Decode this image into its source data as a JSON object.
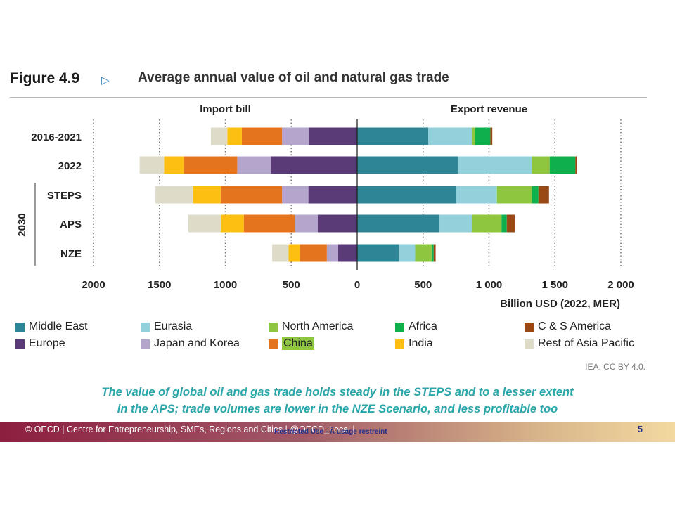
{
  "figure": {
    "number": "Figure 4.9",
    "title": "Average annual value of oil and natural gas trade",
    "credit": "IEA. CC BY 4.0."
  },
  "caption": {
    "line1": "The value of global oil and gas trade holds steady in the STEPS and to a lesser extent",
    "line2": "in the APS; trade volumes are lower in the NZE Scenario, and less profitable too"
  },
  "footer": {
    "text": "© OECD | Centre for Entrepreneurship, SMEs, Regions and Cities | @OECD_Local |",
    "mark": "Restricted Use - À usage restreint",
    "page": "5"
  },
  "chart_data": {
    "type": "bar",
    "orientation": "horizontal-diverging",
    "left_panel_label": "Import bill",
    "right_panel_label": "Export revenue",
    "xlabel": "Billion USD (2022, MER)",
    "xlim": [
      -2000,
      2000
    ],
    "x_tick_labels": [
      "2000",
      "1500",
      "1000",
      "500",
      "0",
      "500",
      "1 000",
      "1 500",
      "2 000"
    ],
    "x_tick_values": [
      -2000,
      -1500,
      -1000,
      -500,
      0,
      500,
      1000,
      1500,
      2000
    ],
    "group_label": "2030",
    "group_members": [
      "STEPS",
      "APS",
      "NZE"
    ],
    "categories": [
      "2016-2021",
      "2022",
      "STEPS",
      "APS",
      "NZE"
    ],
    "colors": {
      "Middle East": "#2e8596",
      "Eurasia": "#92d0dc",
      "North America": "#8ec63f",
      "Africa": "#0fb04c",
      "C & S America": "#9a4814",
      "Europe": "#5a3b78",
      "Japan and Korea": "#b4a5cd",
      "China": "#e5741e",
      "India": "#fdbf12",
      "Rest of Asia Pacific": "#dedcc9"
    },
    "exporter_series": [
      {
        "name": "Middle East",
        "values": [
          540,
          765,
          750,
          620,
          315
        ]
      },
      {
        "name": "Eurasia",
        "values": [
          330,
          560,
          310,
          250,
          125
        ]
      },
      {
        "name": "North America",
        "values": [
          25,
          135,
          265,
          225,
          125
        ]
      },
      {
        "name": "Africa",
        "values": [
          115,
          195,
          50,
          40,
          15
        ]
      },
      {
        "name": "C & S America",
        "values": [
          15,
          10,
          80,
          60,
          15
        ]
      }
    ],
    "importer_series": [
      {
        "name": "Europe",
        "values": [
          365,
          655,
          370,
          300,
          145
        ]
      },
      {
        "name": "Japan and Korea",
        "values": [
          205,
          255,
          200,
          170,
          85
        ]
      },
      {
        "name": "China",
        "values": [
          305,
          405,
          465,
          390,
          205
        ]
      },
      {
        "name": "India",
        "values": [
          110,
          150,
          210,
          175,
          85
        ]
      },
      {
        "name": "Rest of Asia Pacific",
        "values": [
          125,
          185,
          285,
          245,
          125
        ]
      }
    ],
    "legend": [
      "Middle East",
      "Eurasia",
      "North America",
      "Africa",
      "C & S America",
      "Europe",
      "Japan and Korea",
      "China",
      "India",
      "Rest of Asia Pacific"
    ],
    "legend_highlight": "China"
  }
}
